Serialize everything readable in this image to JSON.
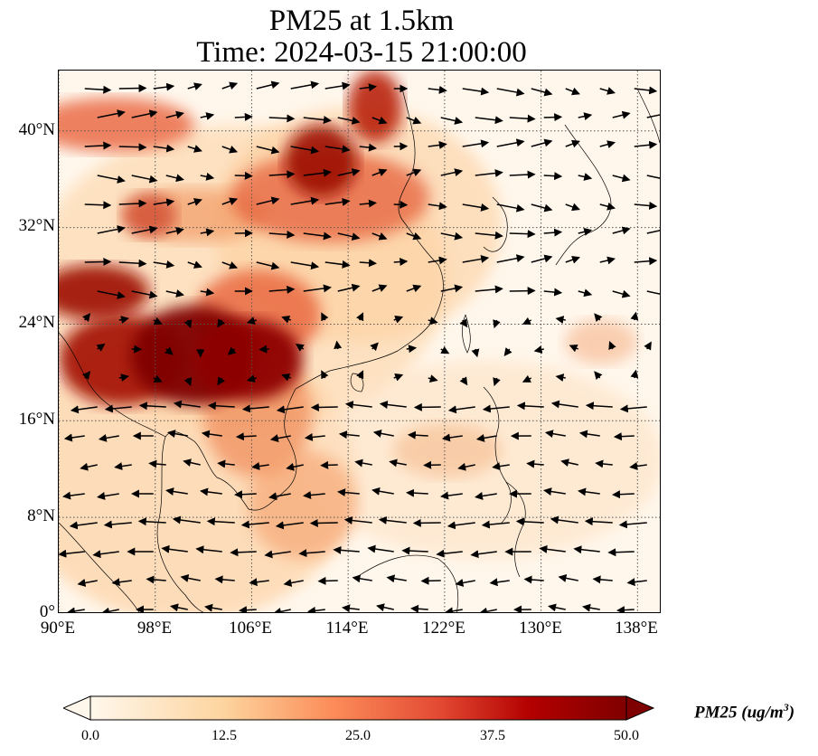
{
  "title": {
    "line1": "PM25 at 1.5km",
    "line2": "Time: 2024-03-15 21:00:00"
  },
  "map": {
    "lon_range": [
      90,
      140
    ],
    "lat_range": [
      0,
      45
    ],
    "lat_ticks": [
      {
        "value": 0,
        "label": "0°"
      },
      {
        "value": 8,
        "label": "8°N"
      },
      {
        "value": 16,
        "label": "16°N"
      },
      {
        "value": 24,
        "label": "24°N"
      },
      {
        "value": 32,
        "label": "32°N"
      },
      {
        "value": 40,
        "label": "40°N"
      }
    ],
    "lon_ticks": [
      {
        "value": 90,
        "label": "90°E"
      },
      {
        "value": 98,
        "label": "98°E"
      },
      {
        "value": 106,
        "label": "106°E"
      },
      {
        "value": 114,
        "label": "114°E"
      },
      {
        "value": 122,
        "label": "122°E"
      },
      {
        "value": 130,
        "label": "130°E"
      },
      {
        "value": 138,
        "label": "138°E"
      }
    ],
    "gridlines": "dotted",
    "colormap": "OrRd",
    "colors": {
      "low": "#fff7ec",
      "mid": "#fdbb84",
      "high": "#e34a33",
      "max": "#7f0000",
      "coast": "#000000"
    }
  },
  "colorbar": {
    "ticks": [
      "0.0",
      "12.5",
      "25.0",
      "37.5",
      "50.0"
    ],
    "label_main": "PM25 (ug/m",
    "label_sup": "3",
    "label_end": ")",
    "min": 0,
    "max": 50,
    "extend": "both"
  }
}
